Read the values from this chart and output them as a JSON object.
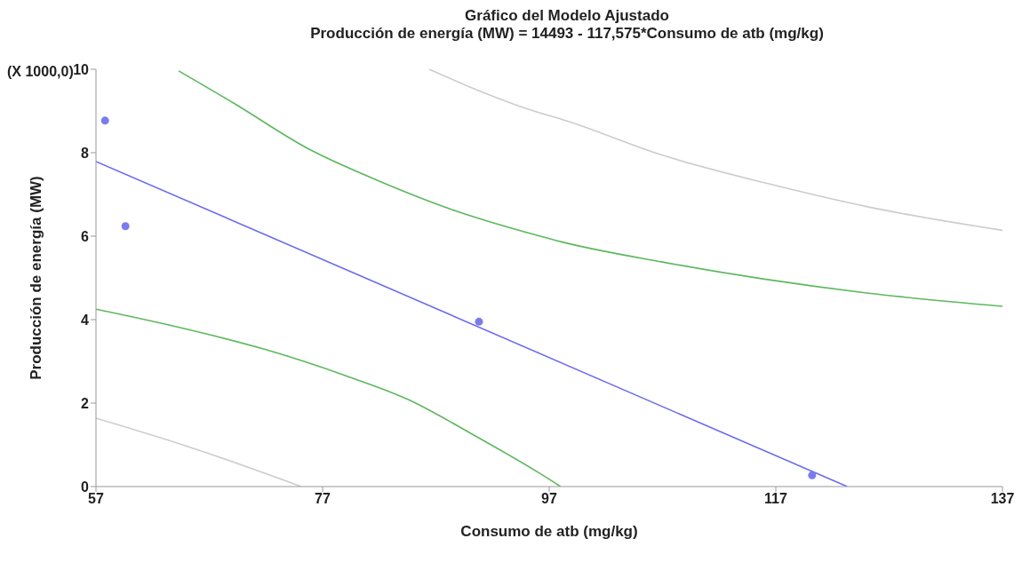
{
  "chart_data": {
    "type": "line",
    "title": "Gráfico del Modelo Ajustado",
    "subtitle": "Producción de energía (MW) = 14493 - 117,575*Consumo de atb (mg/kg)",
    "xlabel": "Consumo de atb (mg/kg)",
    "ylabel": "Producción de energía (MW)",
    "annotations": [
      "(X 1000,0)"
    ],
    "xlim": [
      57,
      137
    ],
    "xticks": [
      57,
      77,
      97,
      117,
      137
    ],
    "ylim": [
      0,
      10
    ],
    "yticks": [
      0,
      2,
      4,
      6,
      8,
      10
    ],
    "grid": false,
    "series": [
      {
        "type": "scatter",
        "color": "#7b7bf0",
        "marker": "circle",
        "x": [
          57.8,
          59.6,
          90.8,
          120.2
        ],
        "values": [
          8.77,
          6.24,
          3.95,
          0.27
        ]
      },
      {
        "color": "#6a6af0",
        "x": [
          57,
          123.3
        ],
        "values": [
          7.79,
          0
        ]
      },
      {
        "color": "#5cb85c",
        "x": [
          64.3,
          69.2,
          75.7,
          81.9,
          88.8,
          96.2,
          98.0,
          107.0,
          116.0,
          125.0,
          137
        ],
        "values": [
          9.96,
          9.18,
          8.1,
          7.33,
          6.6,
          6.0,
          5.87,
          5.38,
          4.97,
          4.64,
          4.32
        ]
      },
      {
        "color": "#5cb85c",
        "x": [
          57,
          63.6,
          72.0,
          79.0,
          84.6,
          90.3,
          96.2,
          98.0
        ],
        "values": [
          4.25,
          3.86,
          3.28,
          2.66,
          2.08,
          1.24,
          0.31,
          0
        ]
      },
      {
        "color": "#cccccc",
        "x": [
          86.4,
          96.2,
          98.0,
          107.0,
          116.0,
          125.0,
          137
        ],
        "values": [
          10,
          8.95,
          8.81,
          7.94,
          7.28,
          6.71,
          6.14
        ]
      },
      {
        "color": "#cccccc",
        "x": [
          57,
          65.0,
          75.1
        ],
        "values": [
          1.64,
          0.97,
          0
        ]
      }
    ]
  }
}
